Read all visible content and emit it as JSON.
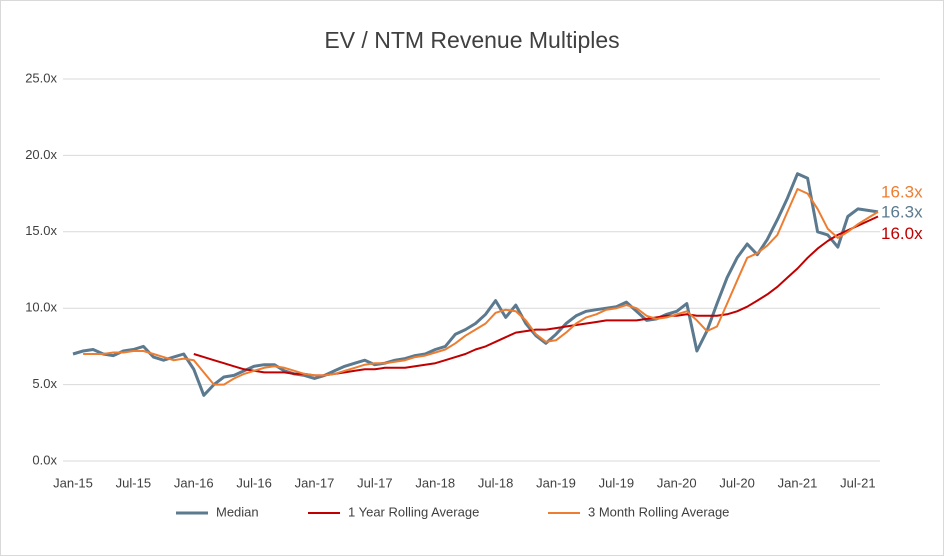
{
  "chart_data": {
    "type": "line",
    "title": "EV / NTM Revenue Multiples",
    "categories": [
      "Jan-15",
      null,
      null,
      null,
      null,
      null,
      "Jul-15",
      null,
      null,
      null,
      null,
      null,
      "Jan-16",
      null,
      null,
      null,
      null,
      null,
      "Jul-16",
      null,
      null,
      null,
      null,
      null,
      "Jan-17",
      null,
      null,
      null,
      null,
      null,
      "Jul-17",
      null,
      null,
      null,
      null,
      null,
      "Jan-18",
      null,
      null,
      null,
      null,
      null,
      "Jul-18",
      null,
      null,
      null,
      null,
      null,
      "Jan-19",
      null,
      null,
      null,
      null,
      null,
      "Jul-19",
      null,
      null,
      null,
      null,
      null,
      "Jan-20",
      null,
      null,
      null,
      null,
      null,
      "Jul-20",
      null,
      null,
      null,
      null,
      null,
      "Jan-21",
      null,
      null,
      null,
      null,
      null,
      "Jul-21",
      null,
      null
    ],
    "series": [
      {
        "name": "Median",
        "color": "#5b7a8f",
        "values": [
          7.0,
          7.2,
          7.3,
          7.0,
          6.9,
          7.2,
          7.3,
          7.5,
          6.8,
          6.6,
          6.8,
          7.0,
          6.0,
          4.3,
          5.0,
          5.5,
          5.6,
          5.9,
          6.2,
          6.3,
          6.3,
          5.9,
          5.7,
          5.6,
          5.4,
          5.6,
          5.9,
          6.2,
          6.4,
          6.6,
          6.3,
          6.4,
          6.6,
          6.7,
          6.9,
          7.0,
          7.3,
          7.5,
          8.3,
          8.6,
          9.0,
          9.6,
          10.5,
          9.4,
          10.2,
          9.0,
          8.2,
          7.7,
          8.3,
          9.0,
          9.5,
          9.8,
          9.9,
          10.0,
          10.1,
          10.4,
          9.8,
          9.2,
          9.3,
          9.6,
          9.8,
          10.3,
          7.2,
          8.5,
          10.3,
          12.0,
          13.3,
          14.2,
          13.5,
          14.5,
          15.8,
          17.2,
          18.8,
          18.5,
          15.0,
          14.8,
          14.0,
          16.0,
          16.5,
          16.4,
          16.3
        ],
        "value_labels": [
          null,
          null,
          null,
          null,
          null,
          null,
          null,
          null,
          null,
          null,
          null,
          null,
          null,
          null,
          null,
          null,
          null,
          null,
          null,
          null,
          null,
          null,
          null,
          null,
          null,
          null,
          null,
          null,
          null,
          null,
          null,
          null,
          null,
          null,
          null,
          null,
          null,
          null,
          null,
          null,
          null,
          null,
          null,
          null,
          null,
          null,
          null,
          null,
          null,
          null,
          null,
          null,
          null,
          null,
          null,
          null,
          null,
          null,
          null,
          null,
          null,
          null,
          null,
          null,
          null,
          null,
          null,
          null,
          null,
          null,
          null,
          null,
          null,
          null,
          null,
          null,
          null,
          null,
          null,
          null,
          "16.3x"
        ]
      },
      {
        "name": "1 Year Rolling Average",
        "color": "#c00000",
        "values": [
          null,
          null,
          null,
          null,
          null,
          null,
          null,
          null,
          null,
          null,
          null,
          null,
          7.0,
          6.8,
          6.6,
          6.4,
          6.2,
          6.0,
          5.9,
          5.8,
          5.8,
          5.8,
          5.7,
          5.7,
          5.6,
          5.6,
          5.7,
          5.8,
          5.9,
          6.0,
          6.0,
          6.1,
          6.1,
          6.1,
          6.2,
          6.3,
          6.4,
          6.6,
          6.8,
          7.0,
          7.3,
          7.5,
          7.8,
          8.1,
          8.4,
          8.5,
          8.6,
          8.6,
          8.7,
          8.8,
          8.9,
          9.0,
          9.1,
          9.2,
          9.2,
          9.2,
          9.2,
          9.3,
          9.4,
          9.5,
          9.5,
          9.6,
          9.5,
          9.5,
          9.5,
          9.6,
          9.8,
          10.1,
          10.5,
          10.9,
          11.4,
          12.0,
          12.6,
          13.3,
          13.9,
          14.4,
          14.8,
          15.1,
          15.4,
          15.7,
          16.0
        ],
        "value_labels": [
          null,
          null,
          null,
          null,
          null,
          null,
          null,
          null,
          null,
          null,
          null,
          null,
          null,
          null,
          null,
          null,
          null,
          null,
          null,
          null,
          null,
          null,
          null,
          null,
          null,
          null,
          null,
          null,
          null,
          null,
          null,
          null,
          null,
          null,
          null,
          null,
          null,
          null,
          null,
          null,
          null,
          null,
          null,
          null,
          null,
          null,
          null,
          null,
          null,
          null,
          null,
          null,
          null,
          null,
          null,
          null,
          null,
          null,
          null,
          null,
          null,
          null,
          null,
          null,
          null,
          null,
          null,
          null,
          null,
          null,
          null,
          null,
          null,
          null,
          null,
          null,
          null,
          null,
          null,
          null,
          "16.0x"
        ]
      },
      {
        "name": "3 Month Rolling Average",
        "color": "#ed7d31",
        "values": [
          null,
          7.0,
          7.0,
          7.0,
          7.1,
          7.1,
          7.2,
          7.2,
          7.0,
          6.8,
          6.6,
          6.7,
          6.6,
          5.8,
          5.0,
          5.0,
          5.4,
          5.7,
          5.9,
          6.1,
          6.2,
          6.1,
          5.9,
          5.7,
          5.6,
          5.6,
          5.7,
          5.9,
          6.1,
          6.3,
          6.4,
          6.4,
          6.5,
          6.6,
          6.8,
          6.9,
          7.1,
          7.3,
          7.7,
          8.2,
          8.6,
          9.0,
          9.7,
          9.9,
          9.8,
          9.2,
          8.3,
          7.8,
          7.9,
          8.4,
          9.0,
          9.4,
          9.6,
          9.9,
          10.0,
          10.2,
          10.0,
          9.5,
          9.3,
          9.4,
          9.6,
          9.8,
          9.2,
          8.5,
          8.8,
          10.3,
          11.8,
          13.3,
          13.6,
          14.1,
          14.8,
          16.3,
          17.8,
          17.5,
          16.5,
          15.2,
          14.6,
          15.0,
          15.5,
          15.9,
          16.3
        ],
        "value_labels": [
          null,
          null,
          null,
          null,
          null,
          null,
          null,
          null,
          null,
          null,
          null,
          null,
          null,
          null,
          null,
          null,
          null,
          null,
          null,
          null,
          null,
          null,
          null,
          null,
          null,
          null,
          null,
          null,
          null,
          null,
          null,
          null,
          null,
          null,
          null,
          null,
          null,
          null,
          null,
          null,
          null,
          null,
          null,
          null,
          null,
          null,
          null,
          null,
          null,
          null,
          null,
          null,
          null,
          null,
          null,
          null,
          null,
          null,
          null,
          null,
          null,
          null,
          null,
          null,
          null,
          null,
          null,
          null,
          null,
          null,
          null,
          null,
          null,
          null,
          null,
          null,
          null,
          null,
          null,
          null,
          "16.3x"
        ]
      }
    ],
    "ylim": [
      0,
      25
    ],
    "yticks": [
      {
        "value": 0,
        "label": "0.0x"
      },
      {
        "value": 5,
        "label": "5.0x"
      },
      {
        "value": 10,
        "label": "10.0x"
      },
      {
        "value": 15,
        "label": "15.0x"
      },
      {
        "value": 20,
        "label": "20.0x"
      },
      {
        "value": 25,
        "label": "25.0x"
      }
    ],
    "grid": true,
    "legend": "bottom"
  }
}
